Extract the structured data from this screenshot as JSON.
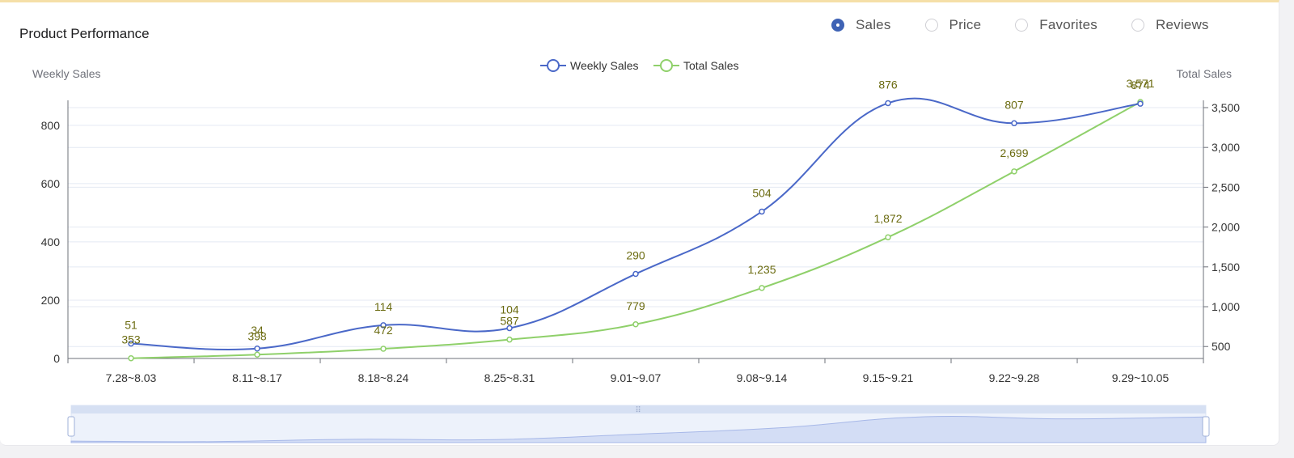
{
  "card": {
    "title": "Product Performance",
    "metric_options": [
      {
        "label": "Sales",
        "checked": true
      },
      {
        "label": "Price",
        "checked": false
      },
      {
        "label": "Favorites",
        "checked": false
      },
      {
        "label": "Reviews",
        "checked": false
      }
    ]
  },
  "colors": {
    "weekly": "#4a68c8",
    "total": "#8fd06a",
    "label": "#6b6b10",
    "accent": "#3f63b5"
  },
  "chart_data": {
    "type": "line",
    "categories": [
      "7.28~8.03",
      "8.11~8.17",
      "8.18~8.24",
      "8.25~8.31",
      "9.01~9.07",
      "9.08~9.14",
      "9.15~9.21",
      "9.22~9.28",
      "9.29~10.05"
    ],
    "series": [
      {
        "name": "Weekly Sales",
        "axis": "left",
        "values": [
          51,
          34,
          114,
          104,
          290,
          504,
          876,
          807,
          874
        ],
        "labels": [
          "51",
          "34",
          "114",
          "104",
          "290",
          "504",
          "876",
          "807",
          "874"
        ]
      },
      {
        "name": "Total Sales",
        "axis": "right",
        "values": [
          353,
          398,
          472,
          587,
          779,
          1235,
          1872,
          2699,
          3571
        ],
        "labels": [
          "353",
          "398",
          "472",
          "587",
          "779",
          "1,235",
          "1,872",
          "2,699",
          "3,571"
        ]
      }
    ],
    "y_left": {
      "label": "Weekly Sales",
      "range": [
        0,
        880
      ],
      "ticks": [
        0,
        200,
        400,
        600,
        800
      ],
      "tick_labels": [
        "0",
        "200",
        "400",
        "600",
        "800"
      ]
    },
    "y_right": {
      "label": "Total Sales",
      "range": [
        350,
        3571
      ],
      "ticks": [
        500,
        1000,
        1500,
        2000,
        2500,
        3000,
        3500
      ],
      "tick_labels": [
        "500",
        "1,000",
        "1,500",
        "2,000",
        "2,500",
        "3,000",
        "3,500"
      ]
    },
    "legend": "top-center",
    "grid": true,
    "data_zoom": {
      "start": 0,
      "end": 100
    }
  }
}
